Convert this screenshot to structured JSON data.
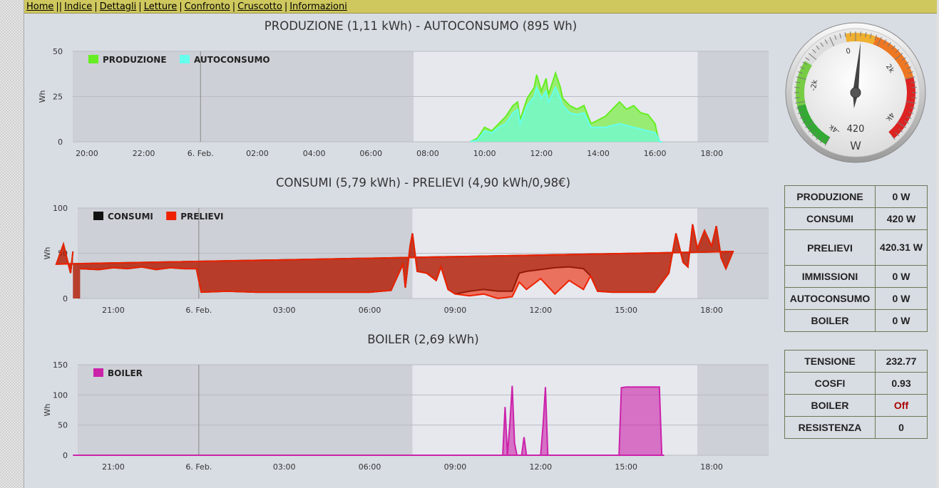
{
  "menu": [
    {
      "label": "Home",
      "sep": " || "
    },
    {
      "label": "Indice",
      "sep": " | "
    },
    {
      "label": "Dettagli",
      "sep": " | "
    },
    {
      "label": "Letture",
      "sep": " | "
    },
    {
      "label": "Confronto",
      "sep": " | "
    },
    {
      "label": "Cruscotto",
      "sep": " | "
    },
    {
      "label": "Informazioni",
      "sep": ""
    }
  ],
  "chart_data": [
    {
      "type": "area",
      "title": "PRODUZIONE (1,11 kWh) - AUTOCONSUMO (895 Wh)",
      "ylabel": "Wh",
      "ylim": [
        0,
        50
      ],
      "yticks": [
        "0",
        "25",
        "50"
      ],
      "xticks": [
        "20:00",
        "22:00",
        "6. Feb.",
        "02:00",
        "04:00",
        "06:00",
        "08:00",
        "10:00",
        "12:00",
        "14:00",
        "16:00",
        "18:00"
      ],
      "legend": "top-left",
      "series": [
        {
          "name": "PRODUZIONE",
          "color": "#66ee22",
          "x": [
            "09:30",
            "09:45",
            "10:00",
            "10:15",
            "10:30",
            "10:45",
            "11:00",
            "11:10",
            "11:15",
            "11:30",
            "11:45",
            "11:50",
            "12:00",
            "12:10",
            "12:15",
            "12:30",
            "12:40",
            "12:45",
            "13:00",
            "13:15",
            "13:30",
            "13:45",
            "14:00",
            "14:15",
            "14:30",
            "14:45",
            "15:00",
            "15:15",
            "15:30",
            "15:45",
            "16:00",
            "16:05",
            "16:10",
            "16:15"
          ],
          "y": [
            0,
            2,
            8,
            6,
            10,
            14,
            20,
            22,
            12,
            24,
            30,
            37,
            28,
            35,
            26,
            38,
            30,
            24,
            20,
            18,
            20,
            10,
            12,
            14,
            18,
            22,
            18,
            20,
            16,
            15,
            10,
            4,
            0,
            0
          ]
        },
        {
          "name": "AUTOCONSUMO",
          "color": "#66ffee",
          "x": [
            "09:30",
            "09:45",
            "10:00",
            "10:15",
            "10:30",
            "10:45",
            "11:00",
            "11:10",
            "11:15",
            "11:30",
            "11:45",
            "11:50",
            "12:00",
            "12:10",
            "12:15",
            "12:30",
            "12:40",
            "12:45",
            "13:00",
            "13:15",
            "13:30",
            "13:45",
            "14:00",
            "14:15",
            "14:30",
            "14:45",
            "15:00",
            "15:15",
            "15:30",
            "15:45",
            "16:00",
            "16:05",
            "16:10",
            "16:15"
          ],
          "y": [
            0,
            1,
            6,
            5,
            8,
            10,
            16,
            18,
            10,
            20,
            25,
            30,
            24,
            28,
            22,
            30,
            24,
            20,
            16,
            15,
            16,
            8,
            8,
            8,
            9,
            10,
            9,
            8,
            7,
            6,
            5,
            3,
            0,
            0
          ]
        }
      ]
    },
    {
      "type": "area",
      "title": "CONSUMI (5,79 kWh) - PRELIEVI (4,90 kWh/0,98€)",
      "ylabel": "Wh",
      "ylim": [
        0,
        100
      ],
      "yticks": [
        "0",
        "50",
        "100"
      ],
      "xticks": [
        "21:00",
        "6. Feb.",
        "03:00",
        "06:00",
        "09:00",
        "12:00",
        "15:00",
        "18:00"
      ],
      "legend": "top-left",
      "series": [
        {
          "name": "CONSUMI",
          "color": "#111111",
          "x": [
            "19:50",
            "20:30",
            "21:00",
            "21:30",
            "22:00",
            "22:30",
            "23:00",
            "23:30",
            "23:55",
            "00:05",
            "01:00",
            "02:00",
            "03:00",
            "04:00",
            "05:00",
            "06:00",
            "06:45",
            "07:10",
            "07:15",
            "07:25",
            "07:30",
            "07:40",
            "08:00",
            "08:20",
            "08:30",
            "08:45",
            "09:00",
            "09:30",
            "10:00",
            "10:30",
            "11:00",
            "11:15",
            "11:30",
            "12:00",
            "12:30",
            "13:00",
            "13:30",
            "13:45",
            "14:00",
            "14:30",
            "15:00",
            "15:30",
            "16:00",
            "16:30",
            "16:45",
            "17:00",
            "17:10",
            "17:20",
            "17:30",
            "17:45",
            "18:00",
            "18:10",
            "18:20",
            "18:30",
            "18:45",
            "19:00",
            "19:15",
            "19:30",
            "19:35"
          ],
          "y": [
            33,
            32,
            34,
            33,
            35,
            32,
            34,
            33,
            33,
            7,
            8,
            7,
            7,
            7,
            7,
            7,
            9,
            38,
            12,
            58,
            72,
            30,
            28,
            20,
            35,
            10,
            5,
            8,
            10,
            8,
            8,
            28,
            30,
            32,
            34,
            35,
            33,
            25,
            8,
            7,
            7,
            7,
            7,
            28,
            72,
            40,
            35,
            82,
            55,
            75,
            58,
            80,
            45,
            33,
            52,
            38,
            60,
            28,
            52
          ]
        },
        {
          "name": "PRELIEVI",
          "color": "#ee2200",
          "x": [
            "19:50",
            "20:30",
            "21:00",
            "21:30",
            "22:00",
            "22:30",
            "23:00",
            "23:30",
            "23:55",
            "00:05",
            "01:00",
            "02:00",
            "03:00",
            "04:00",
            "05:00",
            "06:00",
            "06:45",
            "07:10",
            "07:15",
            "07:25",
            "07:30",
            "07:40",
            "08:00",
            "08:20",
            "08:30",
            "08:45",
            "09:00",
            "09:30",
            "10:00",
            "10:30",
            "11:00",
            "11:15",
            "11:30",
            "12:00",
            "12:30",
            "13:00",
            "13:30",
            "13:45",
            "14:00",
            "14:30",
            "15:00",
            "15:30",
            "16:00",
            "16:30",
            "16:45",
            "17:00",
            "17:10",
            "17:20",
            "17:30",
            "17:45",
            "18:00",
            "18:10",
            "18:20",
            "18:30",
            "18:45",
            "19:00",
            "19:15",
            "19:30",
            "19:35"
          ],
          "y": [
            33,
            32,
            34,
            33,
            35,
            32,
            34,
            33,
            33,
            7,
            8,
            7,
            7,
            7,
            7,
            7,
            9,
            38,
            12,
            58,
            72,
            30,
            28,
            20,
            35,
            10,
            5,
            3,
            5,
            0,
            2,
            18,
            10,
            22,
            5,
            20,
            10,
            25,
            8,
            7,
            7,
            7,
            7,
            28,
            72,
            40,
            35,
            82,
            55,
            75,
            58,
            80,
            45,
            33,
            52,
            38,
            60,
            28,
            52
          ]
        }
      ]
    },
    {
      "type": "area",
      "title": "BOILER (2,69 kWh)",
      "ylabel": "Wh",
      "ylim": [
        0,
        150
      ],
      "yticks": [
        "0",
        "50",
        "100",
        "150"
      ],
      "xticks": [
        "21:00",
        "6. Feb.",
        "03:00",
        "06:00",
        "09:00",
        "12:00",
        "15:00",
        "18:00"
      ],
      "legend": "top-left",
      "series": [
        {
          "name": "BOILER",
          "color": "#cc22aa",
          "x": [
            "19:50",
            "10:40",
            "10:45",
            "10:50",
            "10:55",
            "11:00",
            "11:05",
            "11:10",
            "11:20",
            "11:25",
            "11:30",
            "11:35",
            "11:40",
            "12:00",
            "12:05",
            "12:10",
            "12:15",
            "12:25",
            "12:30",
            "12:35",
            "12:45",
            "14:40",
            "14:45",
            "14:50",
            "15:00",
            "15:30",
            "16:00",
            "16:10",
            "16:15",
            "16:20",
            "19:35"
          ],
          "y": [
            0,
            0,
            80,
            0,
            50,
            115,
            20,
            0,
            0,
            30,
            0,
            0,
            0,
            0,
            50,
            113,
            0,
            0,
            0,
            0,
            0,
            0,
            0,
            112,
            113,
            113,
            113,
            113,
            0,
            0,
            0
          ]
        }
      ]
    }
  ],
  "gauge": {
    "unit": "W",
    "value": 420,
    "value_label": "420",
    "ticks": [
      "-4k",
      "-2k",
      "0",
      "2k",
      "4k"
    ]
  },
  "table1": [
    {
      "label": "PRODUZIONE",
      "value": "0 W"
    },
    {
      "label": "CONSUMI",
      "value": "420 W"
    },
    {
      "label": "PRELIEVI",
      "value": "420.31 W"
    },
    {
      "label": "IMMISSIONI",
      "value": "0 W"
    },
    {
      "label": "AUTOCONSUMO",
      "value": "0 W"
    },
    {
      "label": "BOILER",
      "value": "0 W"
    }
  ],
  "table2": [
    {
      "label": "TENSIONE",
      "value": "232.77"
    },
    {
      "label": "COSFI",
      "value": "0.93"
    },
    {
      "label": "BOILER",
      "value": "Off",
      "color": "#aa0000"
    },
    {
      "label": "RESISTENZA",
      "value": "0"
    }
  ]
}
